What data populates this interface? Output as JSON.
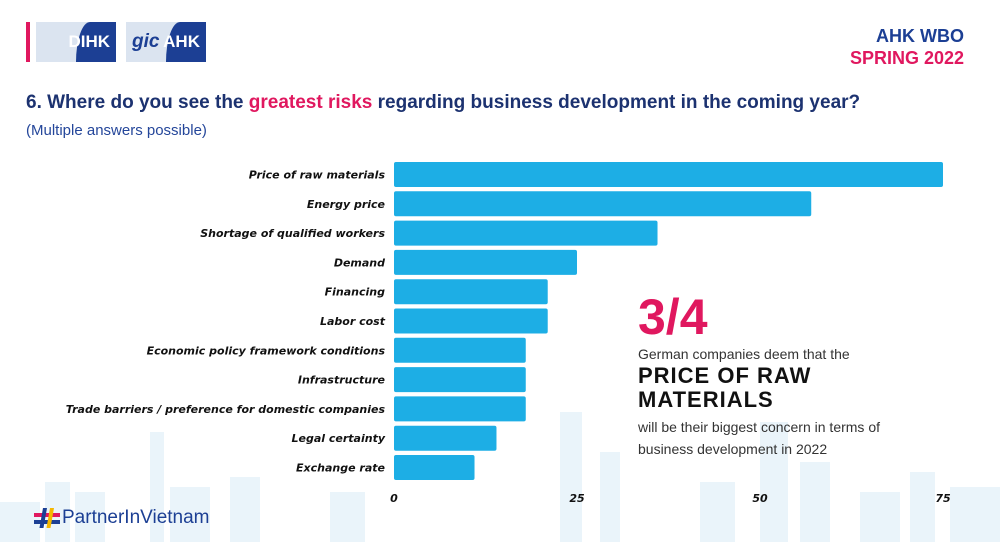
{
  "header": {
    "logos": [
      "DIHK",
      "gic",
      "AHK"
    ],
    "survey_name": "AHK WBO",
    "survey_edition": "SPRING 2022"
  },
  "question": {
    "prefix": "6. Where do you see the ",
    "highlight": "greatest risks",
    "suffix": " regarding business development in the coming year?",
    "note": "(Multiple answers possible)"
  },
  "colors": {
    "bar": "#1daee5",
    "accent": "#e0185f",
    "navy": "#1c3f94"
  },
  "chart_data": {
    "type": "bar",
    "orientation": "horizontal",
    "title": "6. Where do you see the greatest risks regarding business development in the coming year?",
    "subtitle": "(Multiple answers possible)",
    "categories": [
      "Price of raw materials",
      "Energy price",
      "Shortage of qualified workers",
      "Demand",
      "Financing",
      "Labor cost",
      "Economic policy framework conditions",
      "Infrastructure",
      "Trade barriers / preference for domestic companies",
      "Legal certainty",
      "Exchange rate"
    ],
    "values": [
      75,
      57,
      36,
      25,
      21,
      21,
      18,
      18,
      18,
      14,
      11
    ],
    "xlim": [
      0,
      75
    ],
    "xticks": [
      0,
      25,
      50,
      75
    ],
    "xlabel": "",
    "ylabel": "",
    "grid": false
  },
  "callout": {
    "fraction": "3/4",
    "line1": "German companies deem that the",
    "emphasis": "PRICE OF RAW MATERIALS",
    "line2": "will be their biggest concern in terms of business development in 2022"
  },
  "footer": {
    "brand": "PartnerInVietnam"
  }
}
